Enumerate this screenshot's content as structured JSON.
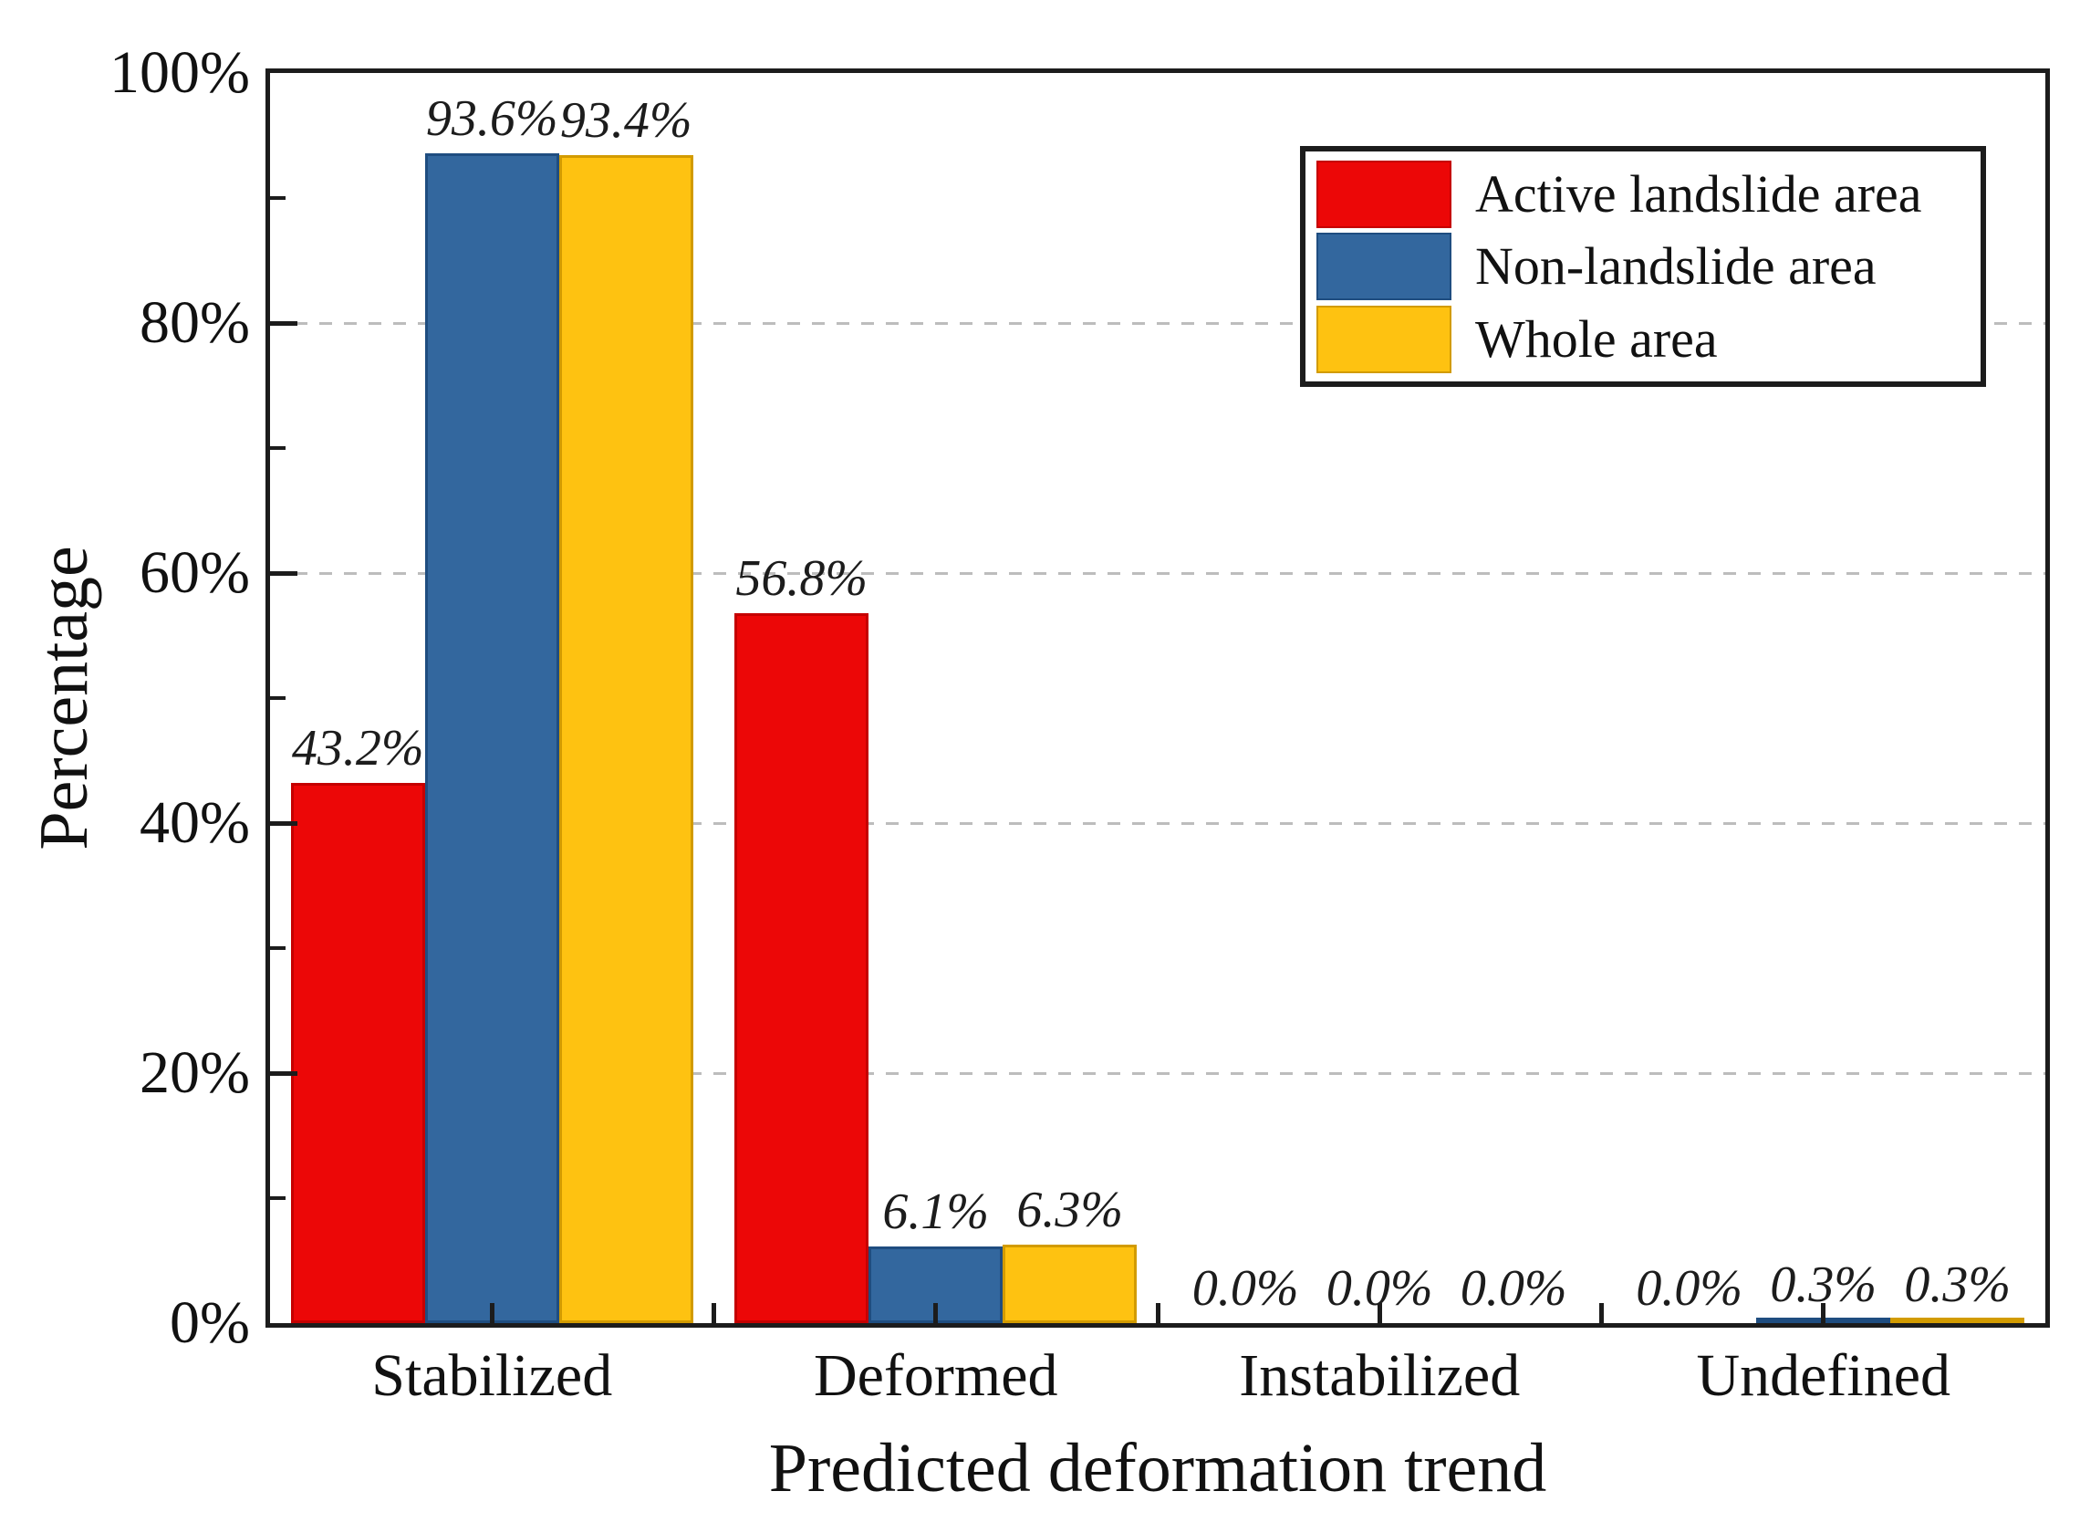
{
  "chart_data": {
    "type": "bar",
    "title": "",
    "xlabel": "Predicted deformation trend",
    "ylabel": "Percentage",
    "categories": [
      "Stabilized",
      "Deformed",
      "Instabilized",
      "Undefined"
    ],
    "series": [
      {
        "name": "Active landslide area",
        "color": "#ec0707",
        "border_color": "#c50000",
        "values": [
          43.2,
          56.8,
          0.0,
          0.0
        ],
        "labels": [
          "43.2%",
          "56.8%",
          "0.0%",
          "0.0%"
        ]
      },
      {
        "name": "Non-landslide area",
        "color": "#33679e",
        "border_color": "#1f4d80",
        "values": [
          93.6,
          6.1,
          0.0,
          0.3
        ],
        "labels": [
          "93.6%",
          "6.1%",
          "0.0%",
          "0.3%"
        ]
      },
      {
        "name": "Whole area",
        "color": "#fec211",
        "border_color": "#d29b00",
        "values": [
          93.4,
          6.3,
          0.0,
          0.3
        ],
        "labels": [
          "93.4%",
          "6.3%",
          "0.0%",
          "0.3%"
        ]
      }
    ],
    "y_axis": {
      "range": [
        0,
        100
      ],
      "ticks": [
        {
          "value": 0,
          "label": "0%"
        },
        {
          "value": 20,
          "label": "20%"
        },
        {
          "value": 40,
          "label": "40%"
        },
        {
          "value": 60,
          "label": "60%"
        },
        {
          "value": 80,
          "label": "80%"
        },
        {
          "value": 100,
          "label": "100%"
        }
      ],
      "minor_ticks": [
        10,
        30,
        50,
        70,
        90
      ],
      "gridlines": [
        20,
        40,
        60,
        80
      ],
      "gridline_style": "dashed"
    },
    "legend": {
      "position": "top-right"
    },
    "colors": {
      "axis": "#1c1c1c",
      "gridline": "#bdbdbd",
      "background": "#ffffff"
    }
  }
}
